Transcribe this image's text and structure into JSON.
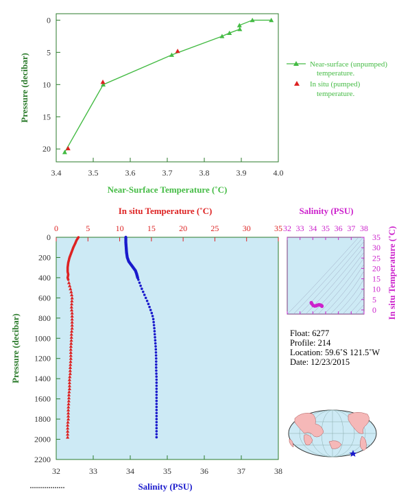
{
  "colors": {
    "green": "#44bb44",
    "green_dark": "#2a7a2a",
    "red": "#dd2222",
    "blue": "#1a1acc",
    "magenta": "#cc22cc",
    "panel_bg": "#cdeaf5",
    "axis_text": "#333333"
  },
  "chart_data": [
    {
      "type": "line",
      "xlabel": "Near-Surface Temperature (˚C)",
      "ylabel": "Pressure (decibar)",
      "xlim": [
        3.4,
        4.0
      ],
      "ylim": [
        22,
        -1
      ],
      "xticks": [
        "3.4",
        "3.5",
        "3.6",
        "3.7",
        "3.8",
        "3.9",
        "4.0"
      ],
      "yticks": [
        "0",
        "5",
        "10",
        "15",
        "20"
      ],
      "legend": {
        "near_surface_line1": "Near-surface (unpumped)",
        "near_surface_line2": "temperature.",
        "in_situ_line1": "In situ (pumped)",
        "in_situ_line2": "temperature."
      },
      "series": [
        {
          "name": "Near-surface (unpumped) temperature.",
          "x": [
            3.981,
            3.93,
            3.896,
            3.895,
            3.868,
            3.848,
            3.712,
            3.527,
            3.423
          ],
          "y": [
            0.0,
            0.0,
            1.4,
            0.8,
            2.0,
            2.5,
            5.4,
            10.0,
            20.5
          ]
        },
        {
          "name": "In situ (pumped) temperature.",
          "x": [
            3.728,
            3.526,
            3.432
          ],
          "y": [
            4.8,
            9.6,
            19.9
          ]
        }
      ]
    },
    {
      "type": "scatter",
      "ylabel": "Pressure (decibar)",
      "ylim": [
        2200,
        0
      ],
      "yticks": [
        "0",
        "200",
        "400",
        "600",
        "800",
        "1000",
        "1200",
        "1400",
        "1600",
        "1800",
        "2000",
        "2200"
      ],
      "top_axis": {
        "label": "In situ Temperature (˚C)",
        "lim": [
          0,
          35
        ],
        "ticks": [
          "0",
          "5",
          "10",
          "15",
          "20",
          "25",
          "30",
          "35"
        ]
      },
      "bottom_axis": {
        "label": "Salinity (PSU)",
        "lim": [
          32,
          38
        ],
        "ticks": [
          "32",
          "33",
          "34",
          "35",
          "36",
          "37",
          "38"
        ]
      },
      "series": [
        {
          "axis": "temperature",
          "x": [
            3.5,
            3.2,
            3.0,
            2.7,
            2.4,
            2.1,
            1.9,
            1.8,
            1.8,
            1.9,
            1.8,
            1.9,
            2.0,
            2.2,
            2.4,
            2.5,
            2.4,
            2.5,
            2.5,
            2.5,
            2.4,
            2.4,
            2.3,
            2.3,
            2.2,
            2.2,
            2.1,
            2.1,
            2.0,
            2.0,
            1.9,
            1.9,
            1.8,
            1.8,
            1.8
          ],
          "y": [
            0,
            30,
            60,
            100,
            150,
            200,
            250,
            300,
            340,
            370,
            400,
            420,
            450,
            500,
            550,
            600,
            700,
            750,
            800,
            900,
            950,
            1000,
            1100,
            1200,
            1300,
            1350,
            1400,
            1500,
            1550,
            1600,
            1700,
            1800,
            1850,
            1900,
            2000
          ]
        },
        {
          "axis": "salinity",
          "x": [
            33.88,
            33.88,
            33.89,
            33.9,
            33.92,
            33.96,
            34.02,
            34.08,
            34.14,
            34.17,
            34.2,
            34.25,
            34.3,
            34.36,
            34.42,
            34.48,
            34.53,
            34.58,
            34.62,
            34.65,
            34.67,
            34.69,
            34.7,
            34.7,
            34.71,
            34.71,
            34.71,
            34.71,
            34.71,
            34.71
          ],
          "y": [
            0,
            50,
            100,
            150,
            200,
            240,
            270,
            300,
            330,
            360,
            400,
            450,
            500,
            550,
            600,
            650,
            700,
            750,
            800,
            900,
            1000,
            1100,
            1200,
            1300,
            1400,
            1500,
            1600,
            1700,
            1800,
            2000
          ]
        }
      ]
    },
    {
      "type": "scatter",
      "title": "Salinity (PSU)",
      "ylabel": "In situ Temperature (˚C)",
      "xlim": [
        32,
        38
      ],
      "ylim": [
        -2,
        35
      ],
      "xticks": [
        "32",
        "33",
        "34",
        "35",
        "36",
        "37",
        "38"
      ],
      "yticks": [
        "0",
        "5",
        "10",
        "15",
        "20",
        "25",
        "30",
        "35"
      ],
      "series": [
        {
          "x": [
            33.88,
            33.92,
            34.02,
            34.14,
            34.25,
            34.36,
            34.48,
            34.58,
            34.65,
            34.7,
            34.71
          ],
          "y": [
            3.5,
            3.0,
            2.2,
            1.9,
            2.0,
            2.3,
            2.5,
            2.4,
            2.2,
            2.0,
            1.8
          ]
        }
      ]
    }
  ],
  "info": {
    "float": "Float:  6277",
    "profile": "Profile:  214",
    "location": "Location:  59.6˚S  121.5˚W",
    "date": "Date:  12/23/2015"
  },
  "map": {
    "marker_lat": -59.6,
    "marker_lon": -121.5,
    "marker_color": "#1a1acc"
  }
}
